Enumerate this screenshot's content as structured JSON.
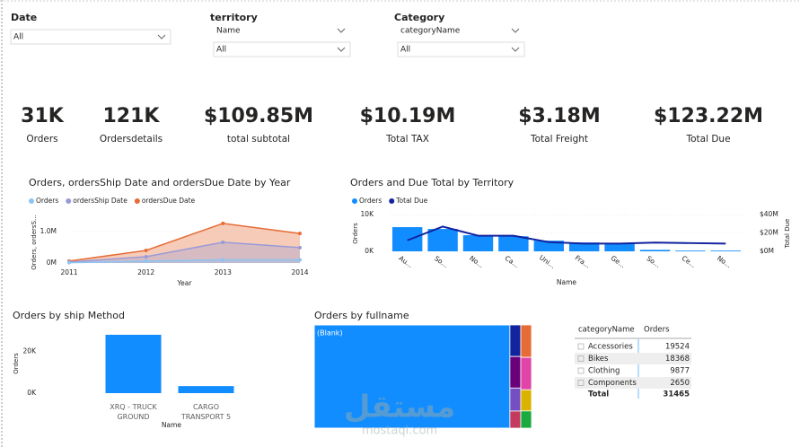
{
  "filters": [
    {
      "label": "Date",
      "dropdowns": [
        "All"
      ]
    },
    {
      "label": "territory",
      "dropdowns": [
        "Name",
        "All"
      ]
    },
    {
      "label": "Category",
      "dropdowns": [
        "categoryName",
        "All"
      ]
    }
  ],
  "kpis": [
    {
      "value": "31K",
      "label": "Orders"
    },
    {
      "value": "121K",
      "label": "Ordersdetails"
    },
    {
      "value": "$109.85M",
      "label": "total subtotal"
    },
    {
      "value": "$10.19M",
      "label": "Total TAX"
    },
    {
      "value": "$3.18M",
      "label": "Total Freight"
    },
    {
      "value": "$123.22M",
      "label": "Total Due"
    }
  ],
  "chart_data": [
    {
      "type": "area",
      "title": "Orders, ordersShip Date and ordersDue Date by Year",
      "x": [
        2011,
        2012,
        2013,
        2014
      ],
      "xlim": [
        2011,
        2014
      ],
      "xticks": [
        2011,
        2012,
        2013,
        2014
      ],
      "x_label": "Year",
      "y_label": "Orders, ordersS...",
      "ylim": [
        0,
        1400000
      ],
      "yticks": [
        {
          "value": 0,
          "label": "0M"
        },
        {
          "value": 1000000,
          "label": "1.0M"
        }
      ],
      "series": [
        {
          "name": "Orders",
          "color": "#8cc4f2",
          "values": [
            10000,
            60000,
            100000,
            100000
          ]
        },
        {
          "name": "ordersShip Date",
          "color": "#9a9ad8",
          "values": [
            30000,
            200000,
            660000,
            490000
          ]
        },
        {
          "name": "ordersDue Date",
          "color": "#e66c37",
          "values": [
            60000,
            400000,
            1260000,
            940000
          ]
        }
      ]
    },
    {
      "type": "bar_line",
      "title": "Orders and Due Total by Territory",
      "categories": [
        "Au...",
        "So...",
        "No...",
        "Ca...",
        "Uni...",
        "Fra...",
        "Ge...",
        "So...",
        "Ce...",
        "No..."
      ],
      "x_label": "Name",
      "y_label": "Orders",
      "y2_label": "Total Due",
      "ylim": [
        0,
        12000
      ],
      "yticks": [
        {
          "value": 0,
          "label": "0K"
        },
        {
          "value": 10000,
          "label": "10K"
        }
      ],
      "y2lim": [
        0,
        48000000
      ],
      "y2ticks": [
        {
          "value": 0,
          "label": "$0M"
        },
        {
          "value": 20000000,
          "label": "$20M"
        },
        {
          "value": 40000000,
          "label": "$40M"
        }
      ],
      "series": [
        {
          "name": "Orders",
          "color": "#118dff",
          "values": [
            6600,
            6100,
            4400,
            4100,
            2900,
            2400,
            2200,
            400,
            200,
            200
          ]
        },
        {
          "name": "Total Due",
          "color": "#12239e",
          "axis": "y2",
          "values": [
            12000000,
            27000000,
            17000000,
            17000000,
            10000000,
            8500000,
            8500000,
            9500000,
            9000000,
            8500000
          ]
        }
      ]
    },
    {
      "type": "bar",
      "title": "Orders by ship Method",
      "categories": [
        "XRQ - TRUCK GROUND",
        "CARGO TRANSPORT 5"
      ],
      "values": [
        28100,
        3400
      ],
      "color": "#118dff",
      "x_label": "Name",
      "y_label": "Orders",
      "ylim": [
        0,
        35000
      ],
      "yticks": [
        {
          "value": 0,
          "label": "0K"
        },
        {
          "value": 20000,
          "label": "20K"
        }
      ]
    },
    {
      "type": "treemap",
      "title": "Orders by fullname",
      "categories": [
        "(Blank)",
        null,
        null,
        null,
        null,
        null,
        null,
        null,
        null
      ],
      "values": [
        28300,
        480,
        480,
        350,
        260,
        490,
        490,
        320,
        260
      ],
      "colors": [
        "#118dff",
        "#12239e",
        "#6b007b",
        "#744ec2",
        "#c4395e",
        "#e66c37",
        "#e044a7",
        "#d9b300",
        "#1aab40"
      ]
    }
  ],
  "table": {
    "columns": [
      "categoryName",
      "Orders"
    ],
    "rows": [
      [
        "Accessories",
        19524
      ],
      [
        "Bikes",
        18368
      ],
      [
        "Clothing",
        9877
      ],
      [
        "Components",
        2650
      ]
    ],
    "total": [
      "Total",
      31465
    ]
  },
  "watermark": {
    "arabic": "مستقل",
    "latin": "mostaql.com"
  }
}
